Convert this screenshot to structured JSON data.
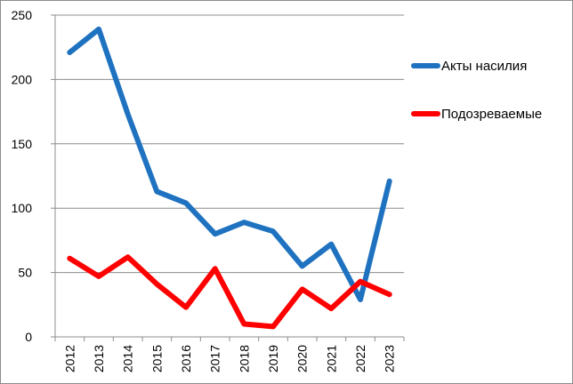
{
  "chart_data": {
    "type": "line",
    "title": "",
    "xlabel": "",
    "ylabel": "",
    "categories": [
      "2012",
      "2013",
      "2014",
      "2015",
      "2016",
      "2017",
      "2018",
      "2019",
      "2020",
      "2021",
      "2022",
      "2023"
    ],
    "ylim": [
      0,
      250
    ],
    "yticks": [
      "0",
      "50",
      "100",
      "150",
      "200",
      "250"
    ],
    "grid": true,
    "legend_position": "right",
    "series": [
      {
        "name": "Акты насилия",
        "color": "#1f72c0",
        "values": [
          221,
          239,
          173,
          113,
          104,
          80,
          89,
          82,
          55,
          72,
          29,
          121
        ]
      },
      {
        "name": "Подозреваемые",
        "color": "#ff0000",
        "values": [
          61,
          47,
          62,
          41,
          23,
          53,
          10,
          8,
          37,
          22,
          43,
          33
        ]
      }
    ]
  }
}
